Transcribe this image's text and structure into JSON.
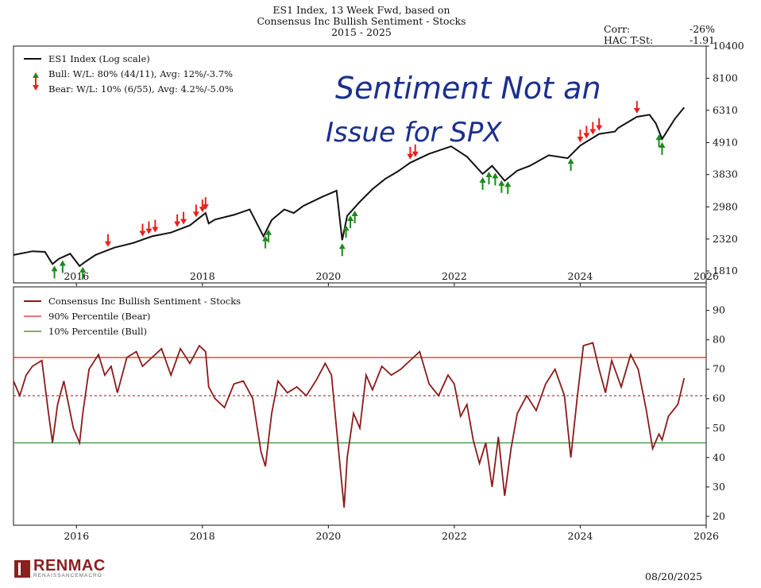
{
  "title": {
    "line1": "ES1 Index, 13 Week Fwd, based on",
    "line2": "Consensus Inc Bullish Sentiment - Stocks",
    "line3": "2015 - 2025"
  },
  "stats": {
    "corr_label": "Corr:",
    "corr_value": "-26%",
    "hac_label": "HAC T-St:",
    "hac_value": "-1.91"
  },
  "annotation": {
    "line1": "Sentiment Not an",
    "line2": "Issue for SPX"
  },
  "footer": {
    "logo_text": "RENMAC",
    "logo_sub": "RENAISSANCEMACRO",
    "date": "08/20/2025"
  },
  "colors": {
    "price": "#111111",
    "sentiment": "#8b1a1a",
    "bear_line": "#e8201c",
    "bull_line": "#1a8a1a",
    "bear_arrow": "#e8201c",
    "bull_arrow": "#1a8a1a",
    "annotation": "#1b2f8f"
  },
  "chart_data": [
    {
      "type": "line",
      "scale": "log",
      "legend": [
        {
          "label": "ES1 Index (Log scale)",
          "kind": "line"
        },
        {
          "label": "Bull:   W/L: 80% (44/11), Avg: 12%/-3.7%",
          "kind": "bull-arrow"
        },
        {
          "label": "Bear:   W/L: 10% (6/55), Avg: 4.2%/-5.0%",
          "kind": "bear-arrow"
        }
      ],
      "legend_placement": "top-left",
      "xlim": [
        2015,
        2026
      ],
      "x_ticks": [
        "2016",
        "2018",
        "2020",
        "2022",
        "2024",
        "2026"
      ],
      "ylim": [
        1650,
        10400
      ],
      "y_ticks": [
        "1810",
        "2320",
        "2980",
        "3830",
        "4910",
        "6310",
        "8100",
        "10400"
      ],
      "series": [
        {
          "x": [
            2015.0,
            2015.3,
            2015.5,
            2015.62,
            2015.72,
            2015.9,
            2016.05,
            2016.12,
            2016.3,
            2016.6,
            2016.9,
            2017.2,
            2017.5,
            2017.8,
            2018.05,
            2018.1,
            2018.2,
            2018.5,
            2018.75,
            2018.97,
            2019.1,
            2019.3,
            2019.45,
            2019.6,
            2019.9,
            2020.13,
            2020.22,
            2020.3,
            2020.5,
            2020.7,
            2020.9,
            2021.1,
            2021.3,
            2021.6,
            2021.95,
            2022.2,
            2022.45,
            2022.6,
            2022.8,
            2023.0,
            2023.2,
            2023.5,
            2023.8,
            2024.0,
            2024.3,
            2024.55,
            2024.6,
            2024.9,
            2025.1,
            2025.2,
            2025.3,
            2025.5,
            2025.65
          ],
          "y": [
            2050,
            2110,
            2100,
            1910,
            1990,
            2070,
            1880,
            1930,
            2050,
            2170,
            2250,
            2370,
            2440,
            2580,
            2840,
            2620,
            2700,
            2800,
            2920,
            2370,
            2690,
            2920,
            2840,
            3000,
            3220,
            3380,
            2300,
            2780,
            3100,
            3420,
            3700,
            3920,
            4200,
            4500,
            4770,
            4400,
            3850,
            4100,
            3650,
            3950,
            4100,
            4450,
            4350,
            4800,
            5250,
            5350,
            5500,
            6000,
            6100,
            5700,
            5050,
            5900,
            6450
          ]
        }
      ],
      "bull_signals_x": [
        2015.65,
        2015.78,
        2016.1,
        2019.0,
        2019.05,
        2020.22,
        2020.28,
        2020.35,
        2020.42,
        2022.45,
        2022.55,
        2022.65,
        2022.75,
        2022.85,
        2023.85,
        2025.25,
        2025.3
      ],
      "bear_signals_x": [
        2016.5,
        2017.05,
        2017.15,
        2017.25,
        2017.6,
        2017.7,
        2017.9,
        2018.0,
        2018.05,
        2021.3,
        2021.38,
        2024.0,
        2024.1,
        2024.2,
        2024.3,
        2024.9
      ]
    },
    {
      "type": "line",
      "legend": [
        {
          "label": "Consensus Inc Bullish Sentiment - Stocks",
          "kind": "sentiment"
        },
        {
          "label": "90% Percentile (Bear)",
          "kind": "bear-line"
        },
        {
          "label": "10% Percentile (Bull)",
          "kind": "bull-line"
        }
      ],
      "legend_placement": "top-left",
      "xlim": [
        2015,
        2026
      ],
      "x_ticks": [
        "2016",
        "2018",
        "2020",
        "2022",
        "2024",
        "2026"
      ],
      "ylim": [
        17,
        98
      ],
      "y_ticks": [
        "20",
        "30",
        "40",
        "50",
        "60",
        "70",
        "80",
        "90"
      ],
      "bear_threshold": 74,
      "bull_threshold": 45,
      "median": 61,
      "series": [
        {
          "x": [
            2015.0,
            2015.1,
            2015.2,
            2015.3,
            2015.45,
            2015.55,
            2015.62,
            2015.7,
            2015.8,
            2015.95,
            2016.05,
            2016.1,
            2016.2,
            2016.35,
            2016.45,
            2016.55,
            2016.65,
            2016.8,
            2016.95,
            2017.05,
            2017.2,
            2017.35,
            2017.5,
            2017.65,
            2017.8,
            2017.95,
            2018.05,
            2018.1,
            2018.2,
            2018.35,
            2018.5,
            2018.65,
            2018.8,
            2018.93,
            2019.0,
            2019.1,
            2019.2,
            2019.35,
            2019.5,
            2019.65,
            2019.8,
            2019.95,
            2020.05,
            2020.12,
            2020.2,
            2020.25,
            2020.3,
            2020.4,
            2020.5,
            2020.6,
            2020.7,
            2020.85,
            2021.0,
            2021.15,
            2021.3,
            2021.45,
            2021.6,
            2021.75,
            2021.9,
            2022.0,
            2022.1,
            2022.2,
            2022.3,
            2022.4,
            2022.5,
            2022.6,
            2022.7,
            2022.8,
            2022.9,
            2023.0,
            2023.15,
            2023.3,
            2023.45,
            2023.6,
            2023.75,
            2023.85,
            2023.95,
            2024.05,
            2024.2,
            2024.3,
            2024.4,
            2024.5,
            2024.65,
            2024.8,
            2024.92,
            2025.05,
            2025.15,
            2025.25,
            2025.3,
            2025.4,
            2025.55,
            2025.65
          ],
          "y": [
            66,
            61,
            68,
            71,
            73,
            56,
            45,
            58,
            66,
            50,
            45,
            55,
            70,
            75,
            68,
            71,
            62,
            74,
            76,
            71,
            74,
            77,
            68,
            77,
            72,
            78,
            76,
            64,
            60,
            57,
            65,
            66,
            60,
            42,
            37,
            55,
            66,
            62,
            64,
            61,
            66,
            72,
            68,
            52,
            34,
            23,
            40,
            55,
            50,
            68,
            63,
            71,
            68,
            70,
            73,
            76,
            65,
            61,
            68,
            65,
            54,
            58,
            46,
            38,
            45,
            30,
            47,
            27,
            43,
            55,
            61,
            56,
            65,
            70,
            61,
            40,
            60,
            78,
            79,
            70,
            62,
            73,
            64,
            75,
            70,
            56,
            43,
            48,
            46,
            54,
            58,
            67
          ]
        }
      ]
    }
  ]
}
